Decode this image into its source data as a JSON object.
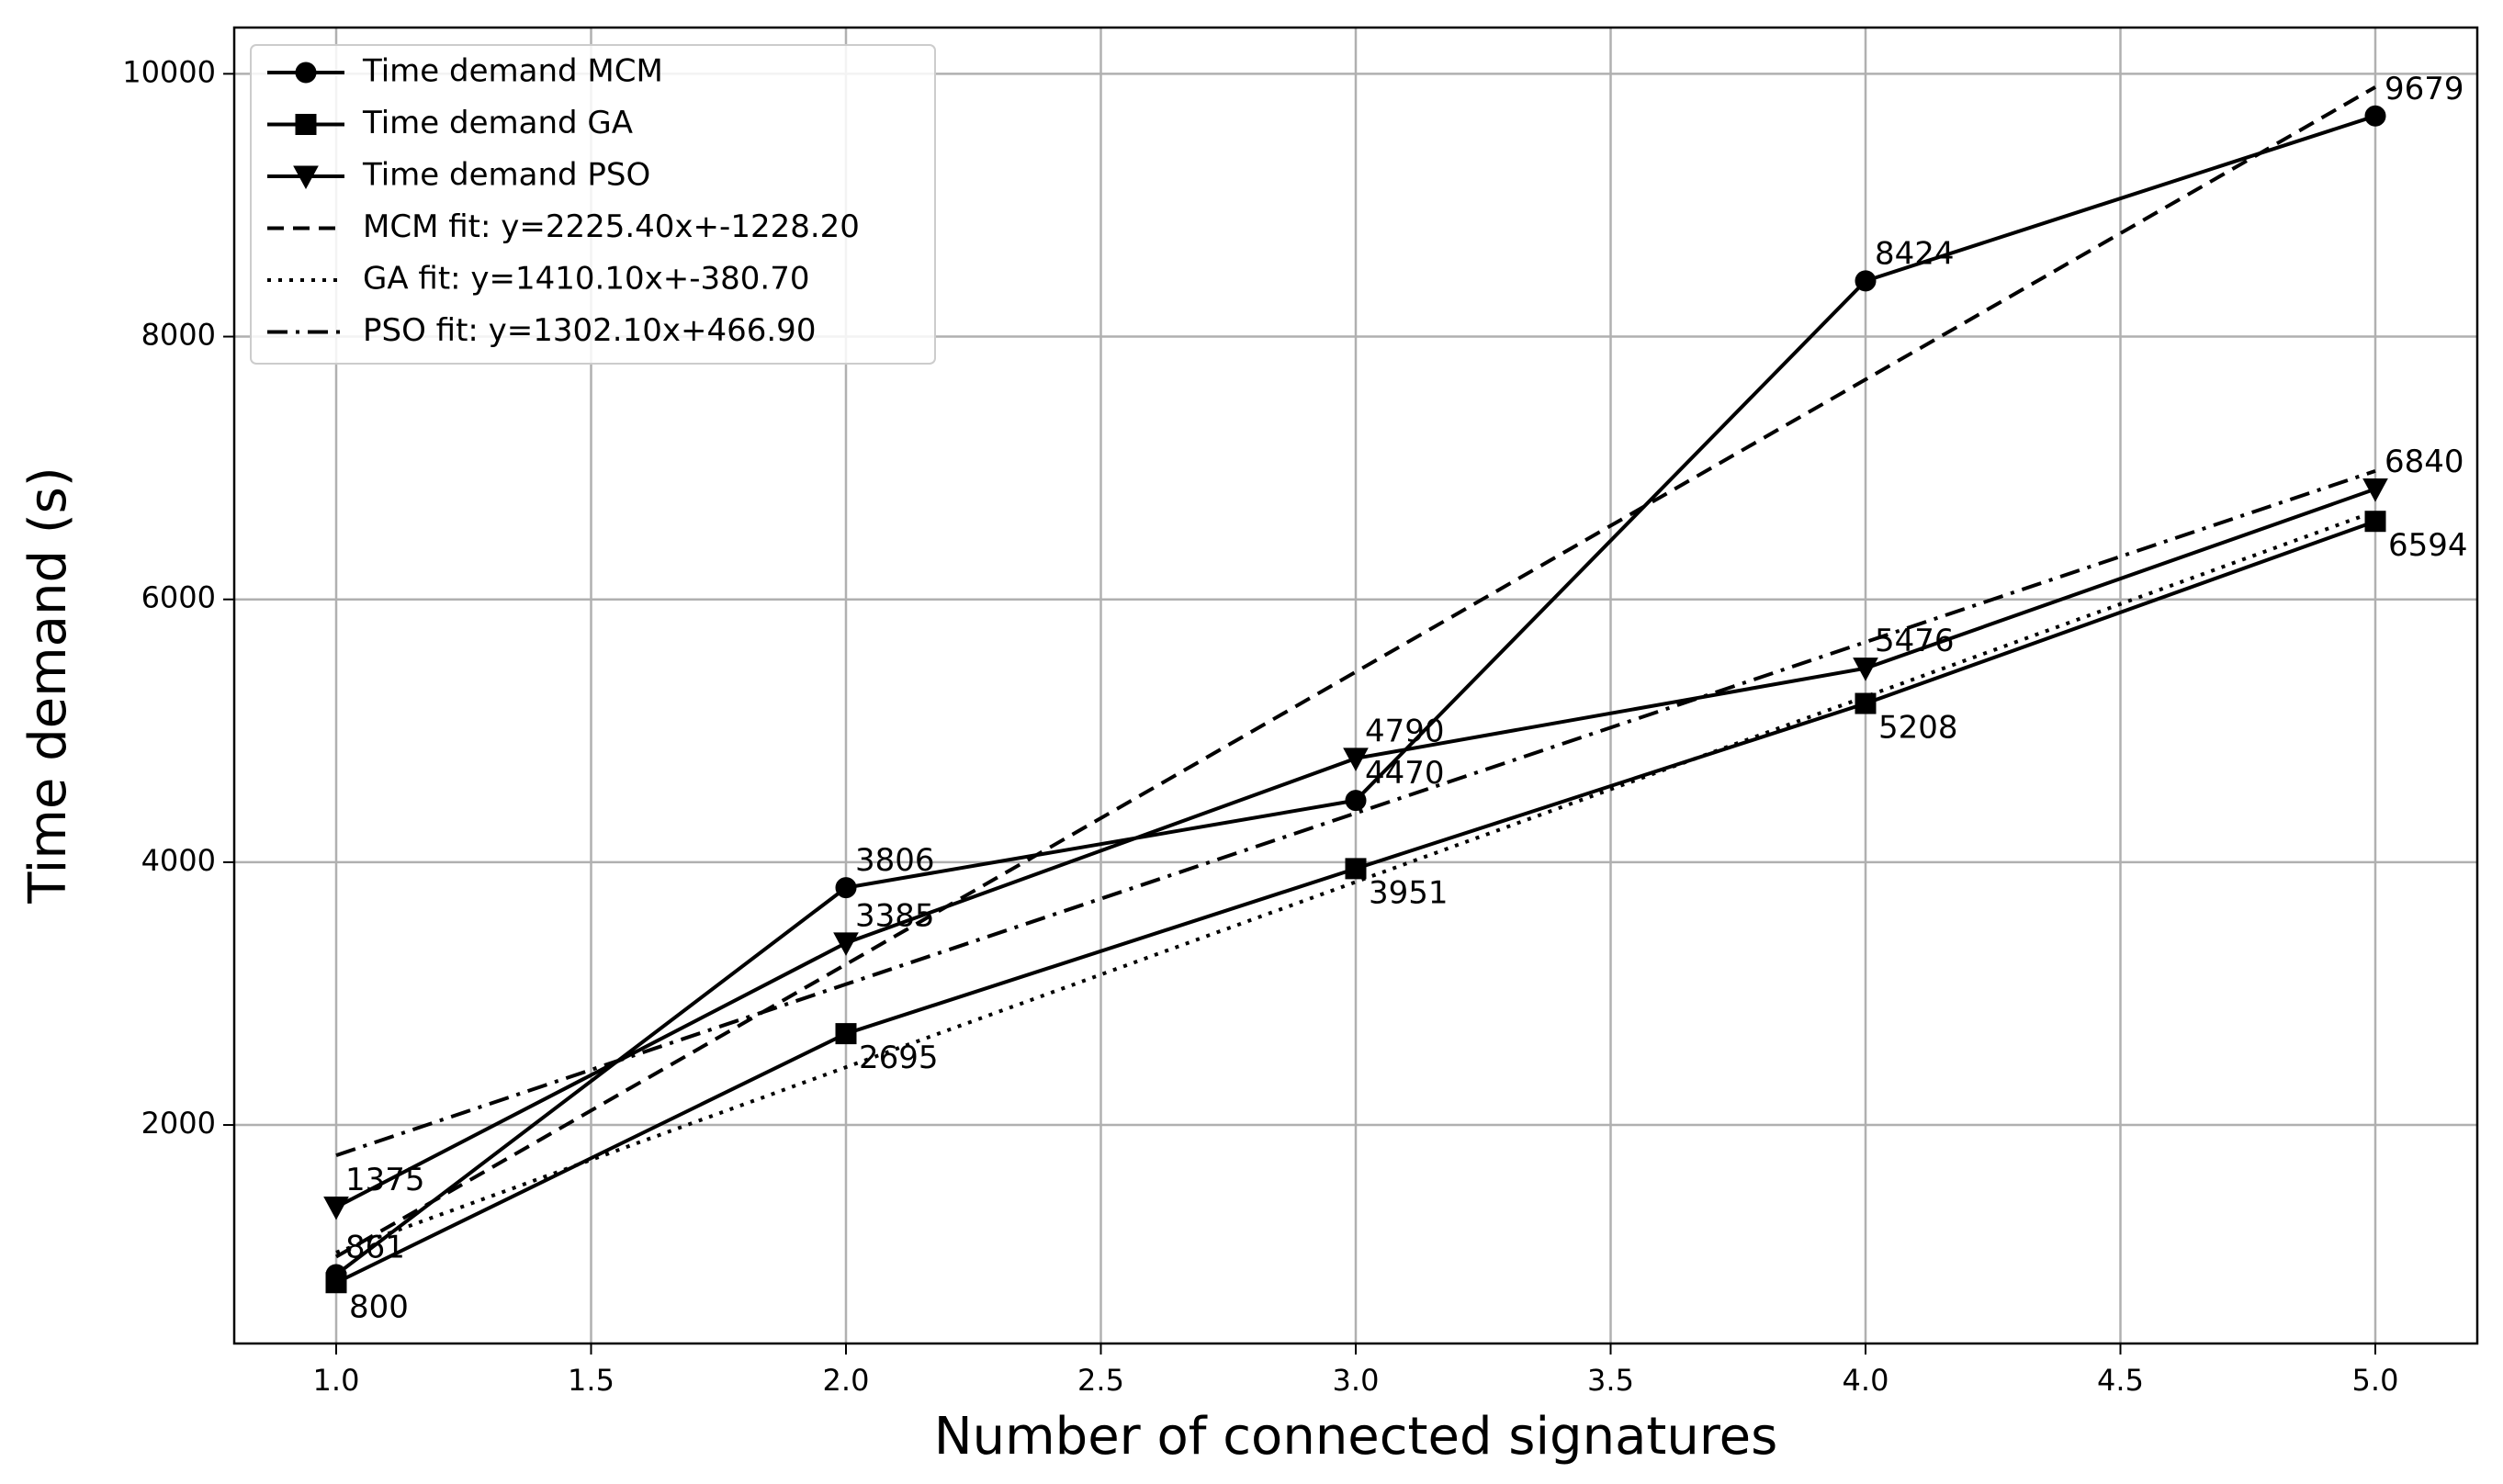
{
  "chart_data": {
    "type": "line",
    "x_label": "Number of connected signatures",
    "y_label": "Time demand (s)",
    "x": [
      1,
      2,
      3,
      4,
      5
    ],
    "xlim": [
      0.8,
      5.2
    ],
    "ylim": [
      337,
      10352
    ],
    "xticks": [
      {
        "value": 1,
        "label": "1.0"
      },
      {
        "value": 1.5,
        "label": "1.5"
      },
      {
        "value": 2,
        "label": "2.0"
      },
      {
        "value": 2.5,
        "label": "2.5"
      },
      {
        "value": 3,
        "label": "3.0"
      },
      {
        "value": 3.5,
        "label": "3.5"
      },
      {
        "value": 4,
        "label": "4.0"
      },
      {
        "value": 4.5,
        "label": "4.5"
      },
      {
        "value": 5,
        "label": "5.0"
      }
    ],
    "yticks": [
      2000,
      4000,
      6000,
      8000,
      10000
    ],
    "grid": true,
    "legend": "upper left",
    "series": [
      {
        "name": "Time demand MCM",
        "color": "#000000",
        "marker": "circle",
        "style": "solid",
        "label_position": "above",
        "values": [
          861,
          3806,
          4470,
          8424,
          9679
        ]
      },
      {
        "name": "Time demand GA",
        "color": "#000000",
        "marker": "square",
        "style": "solid",
        "label_position": "below",
        "values": [
          800,
          2695,
          3951,
          5208,
          6594
        ]
      },
      {
        "name": "Time demand PSO",
        "color": "#000000",
        "marker": "triangle-down",
        "style": "solid",
        "label_position": "above",
        "values": [
          1375,
          3385,
          4790,
          5476,
          6840
        ]
      },
      {
        "name": "MCM fit: y=2225.40x+-1228.20",
        "color": "#000000",
        "style": "dashed",
        "values": [
          997.2,
          3222.6,
          5448,
          7673.4,
          9898.8
        ]
      },
      {
        "name": "GA fit: y=1410.10x+-380.70",
        "color": "#000000",
        "style": "dotted",
        "values": [
          1029.4,
          2439.5,
          3849.6,
          5259.7,
          6669.8
        ]
      },
      {
        "name": "PSO fit: y=1302.10x+466.90",
        "color": "#000000",
        "style": "dashdot",
        "values": [
          1769,
          3071.1,
          4373.2,
          5675.3,
          6977.4
        ]
      }
    ]
  }
}
